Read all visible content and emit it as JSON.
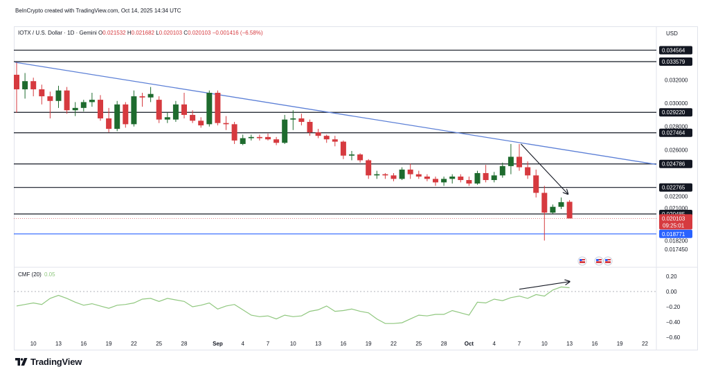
{
  "credit": "BeInCrypto created with TradingView.com, Oct 14, 2025 14:34 UTC",
  "brand": "TradingView",
  "colors": {
    "bull": "#1e6b2e",
    "bear": "#d63a3f",
    "trendline": "#5b7fd6",
    "support_blue": "#2962ff",
    "cmf_line": "#8fc77e",
    "level_line": "#131722",
    "current_label": "#d63a3f"
  },
  "chart_data": {
    "type": "candlestick",
    "symbol_line": {
      "name": "IOTX / U.S. Dollar · 1D · Gemini",
      "open_label": "O",
      "open": "0.021532",
      "high_label": "H",
      "high": "0.021682",
      "low_label": "L",
      "low": "0.020103",
      "close_label": "C",
      "close": "0.020103",
      "change": "−0.001416 (−6.58%)"
    },
    "currency": "USD",
    "y_ticks": [
      "0.032000",
      "0.030000",
      "0.028000",
      "0.026000",
      "0.022000",
      "0.021000",
      "0.018200",
      "0.017450"
    ],
    "x_ticks": [
      {
        "label": "10",
        "day": 10
      },
      {
        "label": "13",
        "day": 13
      },
      {
        "label": "16",
        "day": 16
      },
      {
        "label": "19",
        "day": 19
      },
      {
        "label": "22",
        "day": 22
      },
      {
        "label": "25",
        "day": 25
      },
      {
        "label": "28",
        "day": 28
      },
      {
        "label": "Sep",
        "day": 32
      },
      {
        "label": "4",
        "day": 35
      },
      {
        "label": "7",
        "day": 38
      },
      {
        "label": "10",
        "day": 41
      },
      {
        "label": "13",
        "day": 44
      },
      {
        "label": "16",
        "day": 47
      },
      {
        "label": "19",
        "day": 50
      },
      {
        "label": "22",
        "day": 53
      },
      {
        "label": "25",
        "day": 56
      },
      {
        "label": "28",
        "day": 59
      },
      {
        "label": "Oct",
        "day": 62
      },
      {
        "label": "4",
        "day": 65
      },
      {
        "label": "7",
        "day": 68
      },
      {
        "label": "10",
        "day": 71
      },
      {
        "label": "13",
        "day": 74
      },
      {
        "label": "16",
        "day": 77
      },
      {
        "label": "19",
        "day": 80
      },
      {
        "label": "22",
        "day": 83
      }
    ],
    "levels": [
      {
        "price": "0.034564",
        "value": 0.034564,
        "style": "black"
      },
      {
        "price": "0.033579",
        "value": 0.033579,
        "style": "black"
      },
      {
        "price": "0.029220",
        "value": 0.02922,
        "style": "black"
      },
      {
        "price": "0.027464",
        "value": 0.027464,
        "style": "black"
      },
      {
        "price": "0.024786",
        "value": 0.024786,
        "style": "black"
      },
      {
        "price": "0.022765",
        "value": 0.022765,
        "style": "black"
      },
      {
        "price": "0.020485",
        "value": 0.020485,
        "style": "black"
      },
      {
        "price": "0.018771",
        "value": 0.018771,
        "style": "blue"
      }
    ],
    "current_price": {
      "price": "0.020103",
      "value": 0.020103,
      "countdown": "09:25:01"
    },
    "trendline": {
      "from": {
        "day": 8,
        "value": 0.0335
      },
      "to": {
        "day": 83,
        "value": 0.0249
      }
    },
    "price_arrow": {
      "from": {
        "day": 68.2,
        "value": 0.0265
      },
      "to": {
        "day": 73.8,
        "value": 0.0222
      }
    },
    "candles": [
      {
        "day": 8,
        "o": 0.03245,
        "h": 0.0335,
        "l": 0.0292,
        "c": 0.0312
      },
      {
        "day": 9,
        "o": 0.0312,
        "h": 0.0326,
        "l": 0.0304,
        "c": 0.0319
      },
      {
        "day": 10,
        "o": 0.0319,
        "h": 0.0322,
        "l": 0.0306,
        "c": 0.0312
      },
      {
        "day": 11,
        "o": 0.0312,
        "h": 0.0316,
        "l": 0.0299,
        "c": 0.0306
      },
      {
        "day": 12,
        "o": 0.0306,
        "h": 0.031,
        "l": 0.0287,
        "c": 0.0302
      },
      {
        "day": 13,
        "o": 0.0302,
        "h": 0.0315,
        "l": 0.0296,
        "c": 0.0311
      },
      {
        "day": 14,
        "o": 0.0311,
        "h": 0.0314,
        "l": 0.0291,
        "c": 0.0294
      },
      {
        "day": 15,
        "o": 0.0294,
        "h": 0.0301,
        "l": 0.0289,
        "c": 0.0296
      },
      {
        "day": 16,
        "o": 0.0296,
        "h": 0.0303,
        "l": 0.0293,
        "c": 0.0301
      },
      {
        "day": 17,
        "o": 0.0301,
        "h": 0.0309,
        "l": 0.0297,
        "c": 0.0303
      },
      {
        "day": 18,
        "o": 0.0303,
        "h": 0.0307,
        "l": 0.0285,
        "c": 0.0287
      },
      {
        "day": 19,
        "o": 0.0287,
        "h": 0.0296,
        "l": 0.0275,
        "c": 0.0278
      },
      {
        "day": 20,
        "o": 0.0278,
        "h": 0.0302,
        "l": 0.0276,
        "c": 0.0299
      },
      {
        "day": 21,
        "o": 0.0299,
        "h": 0.0301,
        "l": 0.0279,
        "c": 0.0282
      },
      {
        "day": 22,
        "o": 0.0282,
        "h": 0.0311,
        "l": 0.028,
        "c": 0.0306
      },
      {
        "day": 23,
        "o": 0.0306,
        "h": 0.0309,
        "l": 0.0297,
        "c": 0.0305
      },
      {
        "day": 24,
        "o": 0.0305,
        "h": 0.0314,
        "l": 0.0301,
        "c": 0.0308
      },
      {
        "day": 25,
        "o": 0.0303,
        "h": 0.0306,
        "l": 0.0283,
        "c": 0.0286
      },
      {
        "day": 26,
        "o": 0.0286,
        "h": 0.0292,
        "l": 0.0283,
        "c": 0.0288
      },
      {
        "day": 27,
        "o": 0.0286,
        "h": 0.0302,
        "l": 0.0284,
        "c": 0.0299
      },
      {
        "day": 28,
        "o": 0.0299,
        "h": 0.0309,
        "l": 0.0287,
        "c": 0.029
      },
      {
        "day": 29,
        "o": 0.029,
        "h": 0.0294,
        "l": 0.0283,
        "c": 0.0285
      },
      {
        "day": 30,
        "o": 0.0285,
        "h": 0.0288,
        "l": 0.0279,
        "c": 0.0281
      },
      {
        "day": 31,
        "o": 0.0282,
        "h": 0.0311,
        "l": 0.028,
        "c": 0.0309
      },
      {
        "day": 32,
        "o": 0.0309,
        "h": 0.0311,
        "l": 0.0281,
        "c": 0.0283
      },
      {
        "day": 33,
        "o": 0.0283,
        "h": 0.0289,
        "l": 0.0277,
        "c": 0.0282
      },
      {
        "day": 34,
        "o": 0.0282,
        "h": 0.0284,
        "l": 0.0265,
        "c": 0.0268
      },
      {
        "day": 35,
        "o": 0.0265,
        "h": 0.0273,
        "l": 0.0264,
        "c": 0.027
      },
      {
        "day": 36,
        "o": 0.027,
        "h": 0.0273,
        "l": 0.0268,
        "c": 0.0271
      },
      {
        "day": 37,
        "o": 0.0271,
        "h": 0.0273,
        "l": 0.0268,
        "c": 0.027
      },
      {
        "day": 38,
        "o": 0.0271,
        "h": 0.0274,
        "l": 0.0268,
        "c": 0.0269
      },
      {
        "day": 39,
        "o": 0.0269,
        "h": 0.0271,
        "l": 0.0264,
        "c": 0.0266
      },
      {
        "day": 40,
        "o": 0.0266,
        "h": 0.029,
        "l": 0.0265,
        "c": 0.0286
      },
      {
        "day": 41,
        "o": 0.0286,
        "h": 0.0294,
        "l": 0.0277,
        "c": 0.0287
      },
      {
        "day": 42,
        "o": 0.0287,
        "h": 0.0291,
        "l": 0.0281,
        "c": 0.0284
      },
      {
        "day": 43,
        "o": 0.0284,
        "h": 0.0286,
        "l": 0.0272,
        "c": 0.0275
      },
      {
        "day": 44,
        "o": 0.0275,
        "h": 0.0278,
        "l": 0.027,
        "c": 0.0272
      },
      {
        "day": 45,
        "o": 0.0272,
        "h": 0.0273,
        "l": 0.0266,
        "c": 0.0269
      },
      {
        "day": 46,
        "o": 0.0269,
        "h": 0.0272,
        "l": 0.0263,
        "c": 0.0267
      },
      {
        "day": 47,
        "o": 0.0267,
        "h": 0.0268,
        "l": 0.0252,
        "c": 0.0255
      },
      {
        "day": 48,
        "o": 0.0255,
        "h": 0.0259,
        "l": 0.0251,
        "c": 0.0256
      },
      {
        "day": 49,
        "o": 0.0256,
        "h": 0.0257,
        "l": 0.0249,
        "c": 0.0251
      },
      {
        "day": 50,
        "o": 0.0251,
        "h": 0.0252,
        "l": 0.0235,
        "c": 0.0238
      },
      {
        "day": 51,
        "o": 0.0238,
        "h": 0.0242,
        "l": 0.0235,
        "c": 0.0239
      },
      {
        "day": 52,
        "o": 0.0239,
        "h": 0.024,
        "l": 0.0235,
        "c": 0.0238
      },
      {
        "day": 53,
        "o": 0.0238,
        "h": 0.024,
        "l": 0.0233,
        "c": 0.0235
      },
      {
        "day": 54,
        "o": 0.0235,
        "h": 0.0245,
        "l": 0.0234,
        "c": 0.0243
      },
      {
        "day": 55,
        "o": 0.0243,
        "h": 0.0248,
        "l": 0.0235,
        "c": 0.0239
      },
      {
        "day": 56,
        "o": 0.0239,
        "h": 0.0242,
        "l": 0.0235,
        "c": 0.0237
      },
      {
        "day": 57,
        "o": 0.0237,
        "h": 0.0239,
        "l": 0.0233,
        "c": 0.0235
      },
      {
        "day": 58,
        "o": 0.0235,
        "h": 0.0237,
        "l": 0.0229,
        "c": 0.0232
      },
      {
        "day": 59,
        "o": 0.0232,
        "h": 0.0237,
        "l": 0.0229,
        "c": 0.0235
      },
      {
        "day": 60,
        "o": 0.0235,
        "h": 0.0239,
        "l": 0.0231,
        "c": 0.0237
      },
      {
        "day": 61,
        "o": 0.0237,
        "h": 0.0239,
        "l": 0.0232,
        "c": 0.0234
      },
      {
        "day": 62,
        "o": 0.0234,
        "h": 0.0237,
        "l": 0.0229,
        "c": 0.0231
      },
      {
        "day": 63,
        "o": 0.0231,
        "h": 0.0242,
        "l": 0.023,
        "c": 0.024
      },
      {
        "day": 64,
        "o": 0.024,
        "h": 0.0247,
        "l": 0.0232,
        "c": 0.0234
      },
      {
        "day": 65,
        "o": 0.0234,
        "h": 0.0241,
        "l": 0.0232,
        "c": 0.0238
      },
      {
        "day": 66,
        "o": 0.0238,
        "h": 0.0249,
        "l": 0.0236,
        "c": 0.0246
      },
      {
        "day": 67,
        "o": 0.0246,
        "h": 0.0265,
        "l": 0.0239,
        "c": 0.0254
      },
      {
        "day": 68,
        "o": 0.0254,
        "h": 0.0265,
        "l": 0.0242,
        "c": 0.0245
      },
      {
        "day": 69,
        "o": 0.0245,
        "h": 0.025,
        "l": 0.0235,
        "c": 0.0238
      },
      {
        "day": 70,
        "o": 0.0238,
        "h": 0.0243,
        "l": 0.0219,
        "c": 0.0223
      },
      {
        "day": 71,
        "o": 0.0223,
        "h": 0.0229,
        "l": 0.0182,
        "c": 0.0206
      },
      {
        "day": 72,
        "o": 0.0206,
        "h": 0.0213,
        "l": 0.0205,
        "c": 0.0211
      },
      {
        "day": 73,
        "o": 0.0211,
        "h": 0.0219,
        "l": 0.0209,
        "c": 0.0215
      },
      {
        "day": 74,
        "o": 0.021532,
        "h": 0.021682,
        "l": 0.020103,
        "c": 0.020103
      }
    ],
    "cmf": {
      "label": "CMF (20)",
      "value_label": "0.05",
      "y_ticks": [
        "0.20",
        "0.00",
        "−0.20",
        "−0.40",
        "−0.60"
      ],
      "y_values": [
        0.2,
        0.0,
        -0.2,
        -0.4,
        -0.6
      ],
      "points": [
        [
          8,
          -0.19
        ],
        [
          9,
          -0.17
        ],
        [
          10,
          -0.15
        ],
        [
          11,
          -0.17
        ],
        [
          12,
          -0.09
        ],
        [
          13,
          -0.05
        ],
        [
          14,
          -0.09
        ],
        [
          15,
          -0.14
        ],
        [
          16,
          -0.18
        ],
        [
          17,
          -0.16
        ],
        [
          18,
          -0.19
        ],
        [
          19,
          -0.22
        ],
        [
          20,
          -0.18
        ],
        [
          21,
          -0.17
        ],
        [
          22,
          -0.15
        ],
        [
          23,
          -0.1
        ],
        [
          24,
          -0.09
        ],
        [
          25,
          -0.13
        ],
        [
          26,
          -0.09
        ],
        [
          27,
          -0.11
        ],
        [
          28,
          -0.13
        ],
        [
          29,
          -0.2
        ],
        [
          30,
          -0.18
        ],
        [
          31,
          -0.15
        ],
        [
          32,
          -0.23
        ],
        [
          33,
          -0.19
        ],
        [
          34,
          -0.17
        ],
        [
          35,
          -0.24
        ],
        [
          36,
          -0.31
        ],
        [
          37,
          -0.33
        ],
        [
          38,
          -0.32
        ],
        [
          39,
          -0.36
        ],
        [
          40,
          -0.31
        ],
        [
          41,
          -0.33
        ],
        [
          42,
          -0.32
        ],
        [
          43,
          -0.26
        ],
        [
          44,
          -0.24
        ],
        [
          45,
          -0.19
        ],
        [
          46,
          -0.26
        ],
        [
          47,
          -0.25
        ],
        [
          48,
          -0.23
        ],
        [
          49,
          -0.26
        ],
        [
          50,
          -0.28
        ],
        [
          51,
          -0.36
        ],
        [
          52,
          -0.42
        ],
        [
          53,
          -0.42
        ],
        [
          54,
          -0.41
        ],
        [
          55,
          -0.36
        ],
        [
          56,
          -0.31
        ],
        [
          57,
          -0.32
        ],
        [
          58,
          -0.3
        ],
        [
          59,
          -0.3
        ],
        [
          60,
          -0.25
        ],
        [
          61,
          -0.28
        ],
        [
          62,
          -0.31
        ],
        [
          63,
          -0.14
        ],
        [
          64,
          -0.15
        ],
        [
          65,
          -0.1
        ],
        [
          66,
          -0.12
        ],
        [
          67,
          -0.08
        ],
        [
          68,
          -0.06
        ],
        [
          69,
          -0.09
        ],
        [
          70,
          -0.04
        ],
        [
          71,
          -0.06
        ],
        [
          72,
          0.02
        ],
        [
          73,
          0.06
        ],
        [
          74,
          0.05
        ]
      ],
      "arrow": {
        "from": {
          "day": 68,
          "value": 0.03
        },
        "to": {
          "day": 74,
          "value": 0.13
        }
      }
    }
  }
}
